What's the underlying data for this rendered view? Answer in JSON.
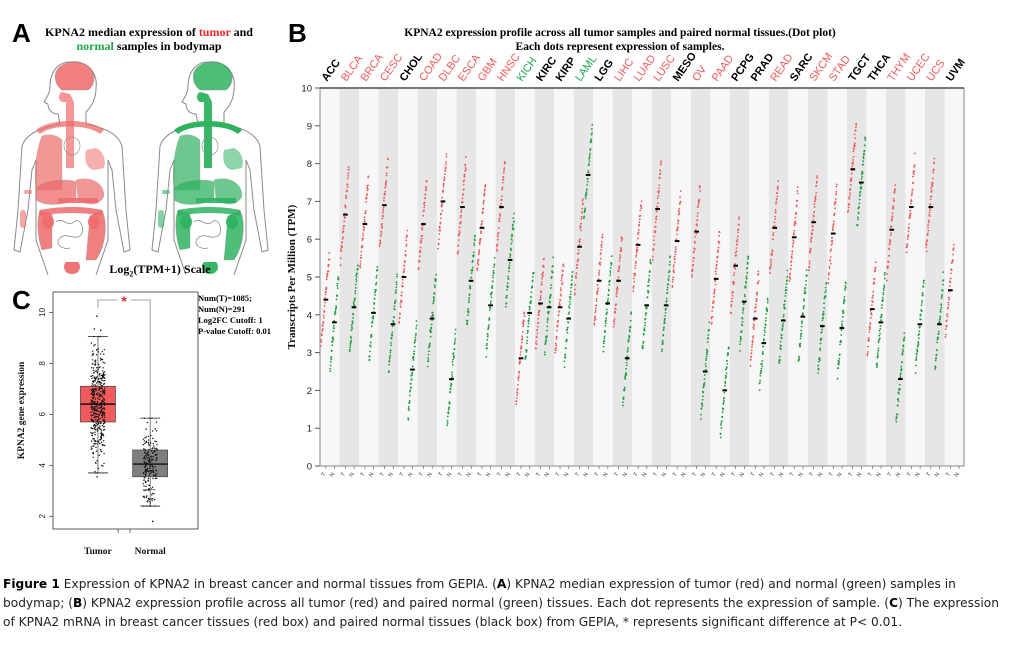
{
  "figure": {
    "caption": {
      "label": "Figure 1",
      "segments": [
        {
          "text": " Expression of KPNA2 in breast cancer and normal tissues from GEPIA. (",
          "bold": false
        },
        {
          "text": "A",
          "bold": true
        },
        {
          "text": ") KPNA2 median expression of tumor (red) and normal (green) samples in bodymap; (",
          "bold": false
        },
        {
          "text": "B",
          "bold": true
        },
        {
          "text": ") KPNA2 expression profile across all tumor (red) and paired normal (green) tissues. Each dot represents the expression of sample. (",
          "bold": false
        },
        {
          "text": "C",
          "bold": true
        },
        {
          "text": ") The expression of KPNA2 mRNA in breast cancer tissues (red box) and paired normal tissues (black box) from GEPIA, * represents significant difference at P< 0.01.",
          "bold": false
        }
      ]
    }
  },
  "panelA": {
    "letter": "A",
    "title_parts": [
      {
        "text": "KPNA2 median expression of ",
        "color": "black"
      },
      {
        "text": "tumor",
        "color": "red"
      },
      {
        "text": " and",
        "color": "black"
      },
      {
        "text": "normal",
        "color": "green",
        "newline": true
      },
      {
        "text": " samples in bodymap",
        "color": "black"
      }
    ],
    "scale_label_prefix": "Log",
    "scale_label_sub": "2",
    "scale_label_suffix": "(TPM+1) Scale",
    "bodymaps": [
      {
        "name": "tumor",
        "color": "#ee6b6b"
      },
      {
        "name": "normal",
        "color": "#2fb260"
      }
    ]
  },
  "panelB": {
    "letter": "B",
    "title_line1": "KPNA2 expression profile across all tumor samples and paired normal tissues.(Dot plot)",
    "title_line2": "Each dots represent expression of samples."
  },
  "panelC": {
    "letter": "C",
    "stats": [
      "Num(T)=1085;",
      "Num(N)=291",
      "Log2FC Cutoff: 1",
      "P-value Cutoff: 0.01"
    ],
    "significance_marker": "*"
  },
  "chart_data": [
    {
      "id": "panelB",
      "type": "scatter",
      "title": "KPNA2 expression profile across all tumor samples and paired normal tissues.(Dot plot)",
      "subtitle": "Each dots represent expression of samples.",
      "xlabel": "",
      "ylabel": "Transcripts Per Million (TPM)",
      "ylim": [
        0,
        10
      ],
      "yticks": [
        0,
        1,
        2,
        3,
        4,
        5,
        6,
        7,
        8,
        9,
        10
      ],
      "grid": "alternating vertical bands",
      "colors": {
        "tumor": "#ee5a5a",
        "normal": "#1e9e3e",
        "label_black": "#000000",
        "label_red": "#ee5a5a",
        "label_green": "#1fa84a",
        "median": "#000000"
      },
      "categories": [
        {
          "name": "ACC",
          "label_color": "black",
          "tumor_median": 4.4,
          "normal_median": 3.8
        },
        {
          "name": "BLCA",
          "label_color": "red",
          "tumor_median": 6.65,
          "normal_median": 4.2
        },
        {
          "name": "BRCA",
          "label_color": "red",
          "tumor_median": 6.4,
          "normal_median": 4.05
        },
        {
          "name": "CESC",
          "label_color": "red",
          "tumor_median": 6.9,
          "normal_median": 3.75
        },
        {
          "name": "CHOL",
          "label_color": "black",
          "tumor_median": 5.0,
          "normal_median": 2.55
        },
        {
          "name": "COAD",
          "label_color": "red",
          "tumor_median": 6.4,
          "normal_median": 3.9
        },
        {
          "name": "DLBC",
          "label_color": "red",
          "tumor_median": 7.0,
          "normal_median": 2.3
        },
        {
          "name": "ESCA",
          "label_color": "red",
          "tumor_median": 6.85,
          "normal_median": 4.9
        },
        {
          "name": "GBM",
          "label_color": "red",
          "tumor_median": 6.3,
          "normal_median": 4.25
        },
        {
          "name": "HNSC",
          "label_color": "red",
          "tumor_median": 6.85,
          "normal_median": 5.45
        },
        {
          "name": "KICH",
          "label_color": "green",
          "tumor_median": 2.85,
          "normal_median": 4.05
        },
        {
          "name": "KIRC",
          "label_color": "black",
          "tumor_median": 4.3,
          "normal_median": 4.2
        },
        {
          "name": "KIRP",
          "label_color": "black",
          "tumor_median": 4.2,
          "normal_median": 3.9
        },
        {
          "name": "LAML",
          "label_color": "green",
          "tumor_median": 5.8,
          "normal_median": 7.7
        },
        {
          "name": "LGG",
          "label_color": "black",
          "tumor_median": 4.9,
          "normal_median": 4.3
        },
        {
          "name": "LIHC",
          "label_color": "red",
          "tumor_median": 4.9,
          "normal_median": 2.85
        },
        {
          "name": "LUAD",
          "label_color": "red",
          "tumor_median": 5.85,
          "normal_median": 4.25
        },
        {
          "name": "LUSC",
          "label_color": "red",
          "tumor_median": 6.8,
          "normal_median": 4.25
        },
        {
          "name": "MESO",
          "label_color": "black",
          "tumor_median": 5.95,
          "normal_median": null
        },
        {
          "name": "OV",
          "label_color": "red",
          "tumor_median": 6.2,
          "normal_median": 2.5
        },
        {
          "name": "PAAD",
          "label_color": "red",
          "tumor_median": 4.95,
          "normal_median": 2.0
        },
        {
          "name": "PCPG",
          "label_color": "black",
          "tumor_median": 5.3,
          "normal_median": 4.35
        },
        {
          "name": "PRAD",
          "label_color": "black",
          "tumor_median": 3.9,
          "normal_median": 3.25
        },
        {
          "name": "READ",
          "label_color": "red",
          "tumor_median": 6.3,
          "normal_median": 3.85
        },
        {
          "name": "SARC",
          "label_color": "black",
          "tumor_median": 6.05,
          "normal_median": 3.95
        },
        {
          "name": "SKCM",
          "label_color": "red",
          "tumor_median": 6.45,
          "normal_median": 3.7
        },
        {
          "name": "STAD",
          "label_color": "red",
          "tumor_median": 6.15,
          "normal_median": 3.65
        },
        {
          "name": "TGCT",
          "label_color": "black",
          "tumor_median": 7.85,
          "normal_median": 7.5
        },
        {
          "name": "THCA",
          "label_color": "black",
          "tumor_median": 4.15,
          "normal_median": 3.8
        },
        {
          "name": "THYM",
          "label_color": "red",
          "tumor_median": 6.25,
          "normal_median": 2.3
        },
        {
          "name": "UCEC",
          "label_color": "red",
          "tumor_median": 6.85,
          "normal_median": 3.75
        },
        {
          "name": "UCS",
          "label_color": "red",
          "tumor_median": 6.85,
          "normal_median": 3.75
        },
        {
          "name": "UVM",
          "label_color": "black",
          "tumor_median": 4.65,
          "normal_median": null
        }
      ]
    },
    {
      "id": "panelC",
      "type": "box",
      "title": "",
      "xlabel": "",
      "ylabel": "KPNA2 gene expression",
      "ylim": [
        1.5,
        10.8
      ],
      "yticks": [
        2,
        4,
        6,
        8,
        10
      ],
      "categories": [
        "Tumor",
        "Normal"
      ],
      "boxes": [
        {
          "name": "Tumor",
          "color": "#f25b5b",
          "whisker_low": 3.7,
          "q1": 5.7,
          "median": 6.4,
          "q3": 7.1,
          "whisker_high": 9.05,
          "outliers": [
            3.55,
            9.3,
            9.35,
            9.85
          ]
        },
        {
          "name": "Normal",
          "color": "#7f7f7f",
          "whisker_low": 2.4,
          "q1": 3.55,
          "median": 4.05,
          "q3": 4.6,
          "whisker_high": 5.85,
          "outliers": [
            1.8
          ]
        }
      ],
      "counts": {
        "tumor": 1085,
        "normal": 291
      },
      "significance": {
        "between": [
          "Tumor",
          "Normal"
        ],
        "marker": "*"
      }
    }
  ]
}
